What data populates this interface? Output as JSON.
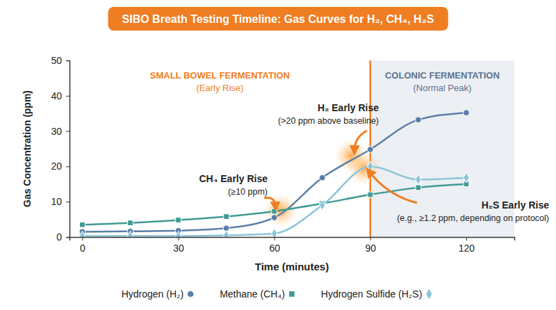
{
  "chart_data": {
    "type": "line",
    "title": "SIBO Breath Testing Timeline: Gas Curves for H₂, CH₄, H₂S",
    "x_label": "Time (minutes)",
    "y_label": "Gas Concentration (ppm)",
    "x": [
      0,
      15,
      30,
      45,
      60,
      75,
      90,
      105,
      120
    ],
    "series": [
      {
        "name": "Hydrogen (H₂)",
        "color": "#5a7fa8",
        "marker": "circle",
        "values": [
          1.5,
          1.6,
          1.8,
          2.5,
          5.5,
          16.8,
          24.8,
          33.2,
          35.2
        ]
      },
      {
        "name": "Methane (CH₄)",
        "color": "#3f9a94",
        "marker": "square",
        "values": [
          3.5,
          4.0,
          4.8,
          5.8,
          7.3,
          9.5,
          12.0,
          14.0,
          15.0
        ]
      },
      {
        "name": "Hydrogen Sulfide (H₂S)",
        "color": "#8cc4d8",
        "marker": "diamond",
        "values": [
          0.3,
          0.3,
          0.3,
          0.5,
          1.0,
          9.0,
          20.0,
          16.3,
          16.8
        ]
      }
    ],
    "xlim": [
      -4,
      135
    ],
    "xticks": [
      0,
      30,
      60,
      90,
      120
    ],
    "ylim": [
      0,
      50
    ],
    "yticks": [
      0,
      10,
      20,
      30,
      40,
      50
    ],
    "grid": false,
    "legend": "bottom",
    "regions": [
      {
        "label": "SMALL BOWEL FERMENTATION",
        "sublabel": "(Early Rise)",
        "start": -4,
        "end": 90
      },
      {
        "label": "COLONIC FERMENTATION",
        "sublabel": "(Normal Peak)",
        "start": 90,
        "end": 135
      }
    ],
    "annotations": [
      {
        "title": "CH₄ Early Rise",
        "text": "(≥10 ppm)",
        "x": 62,
        "y": 7.5
      },
      {
        "title": "H₂ Early Rise",
        "text": "(>20 ppm above baseline)",
        "x": 84,
        "y": 23
      },
      {
        "title": "H₂S Early Rise",
        "text": "(e.g., ≥1.2 ppm, depending on protocol)",
        "x": 88,
        "y": 19.5
      }
    ]
  }
}
